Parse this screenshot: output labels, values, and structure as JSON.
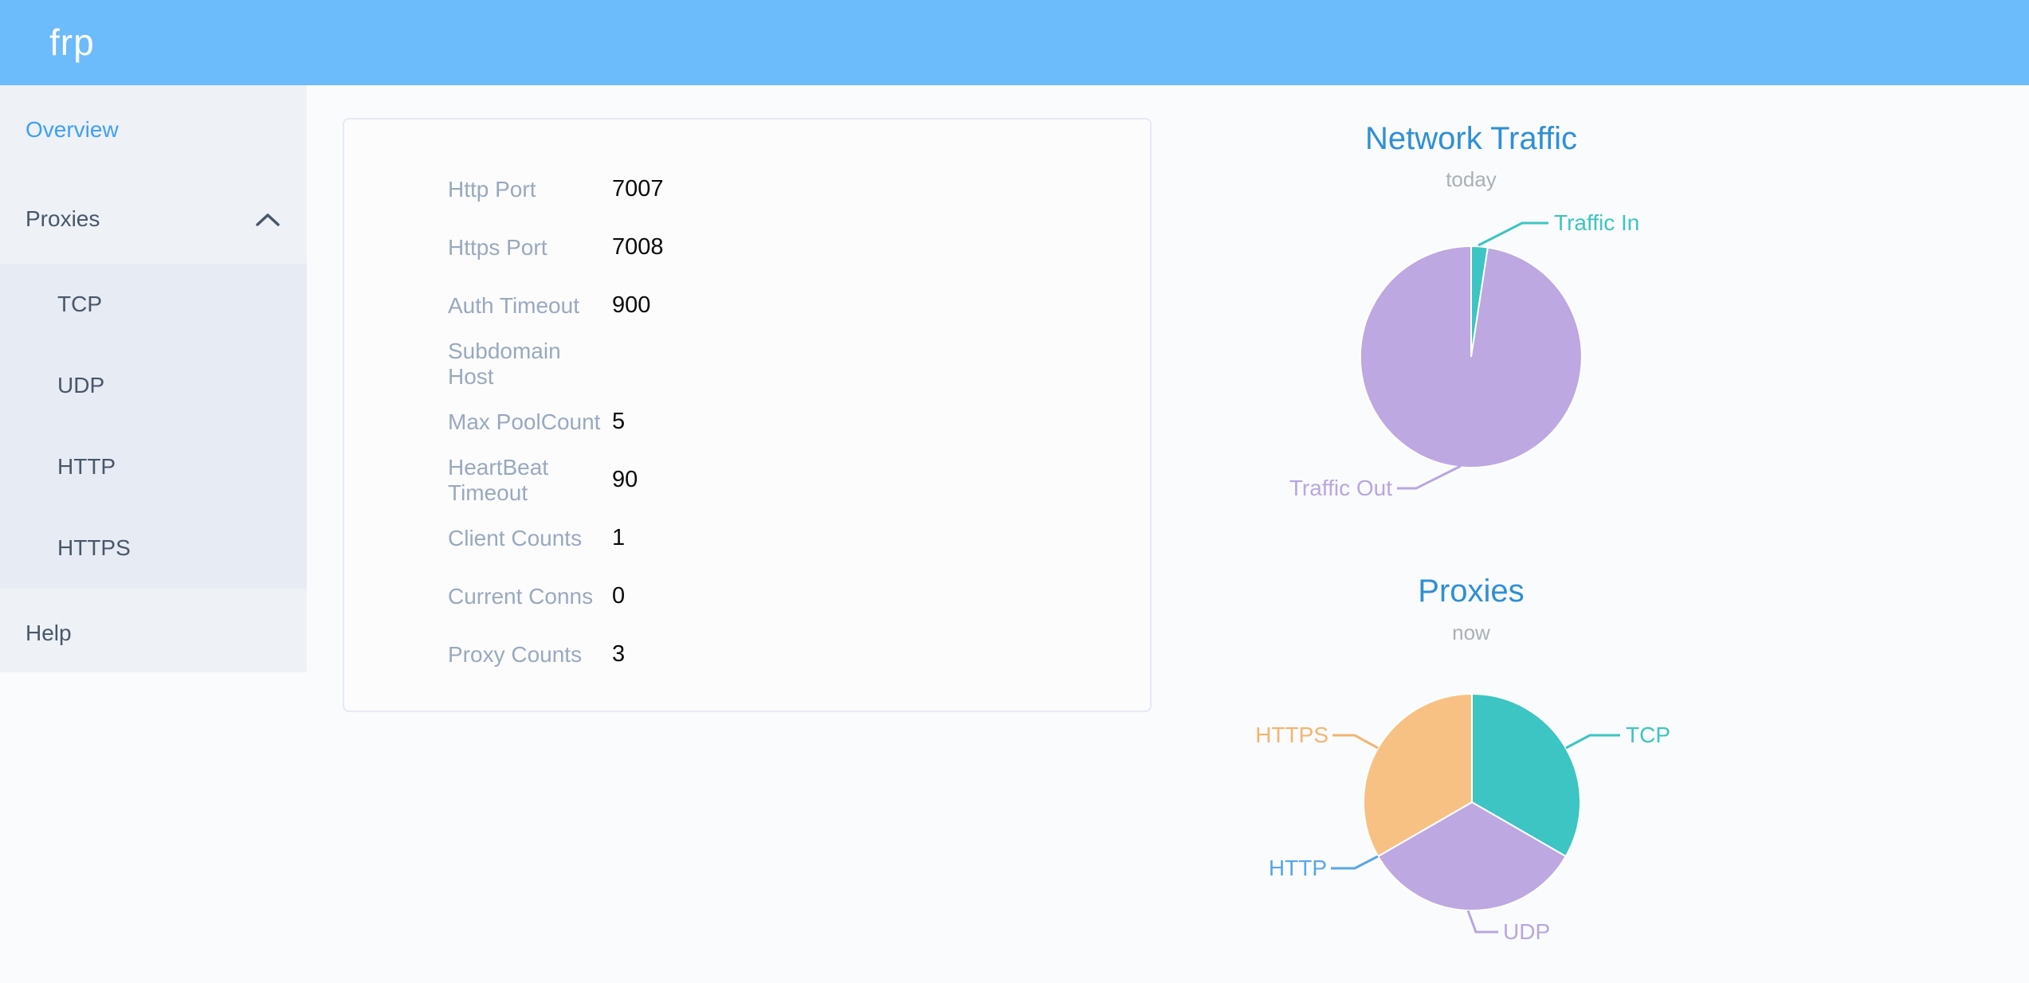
{
  "app": {
    "logo": "frp"
  },
  "sidebar": {
    "items": [
      {
        "label": "Overview",
        "active": true
      },
      {
        "label": "Proxies",
        "expanded": true,
        "children": [
          "TCP",
          "UDP",
          "HTTP",
          "HTTPS"
        ]
      },
      {
        "label": "Help"
      }
    ]
  },
  "overview_card": {
    "rows": [
      {
        "label": "Http Port",
        "value": "7007"
      },
      {
        "label": "Https Port",
        "value": "7008"
      },
      {
        "label": "Auth Timeout",
        "value": "900"
      },
      {
        "label": "Subdomain Host",
        "value": ""
      },
      {
        "label": "Max PoolCount",
        "value": "5"
      },
      {
        "label": "HeartBeat Timeout",
        "value": "90"
      },
      {
        "label": "Client Counts",
        "value": "1"
      },
      {
        "label": "Current Conns",
        "value": "0"
      },
      {
        "label": "Proxy Counts",
        "value": "3"
      }
    ]
  },
  "chart_data": [
    {
      "type": "pie",
      "title": "Network Traffic",
      "subtitle": "today",
      "legend_position": "callout-labels",
      "values_are_percent_estimates": true,
      "series": [
        {
          "name": "Traffic In",
          "value": 2.4,
          "color": "#3cc5c2"
        },
        {
          "name": "Traffic Out",
          "value": 97.6,
          "color": "#bda8e2"
        }
      ]
    },
    {
      "type": "pie",
      "title": "Proxies",
      "subtitle": "now",
      "legend_position": "callout-labels",
      "series": [
        {
          "name": "TCP",
          "value": 1,
          "color": "#3cc5c2"
        },
        {
          "name": "UDP",
          "value": 1,
          "color": "#bda8e2"
        },
        {
          "name": "HTTP",
          "value": 0,
          "color": "#58a6e8"
        },
        {
          "name": "HTTPS",
          "value": 1,
          "color": "#f8c184"
        }
      ]
    }
  ],
  "colors": {
    "header": "#6cbbfb",
    "accent_blue": "#3f9ff7",
    "title_blue": "#2f8fd6",
    "sidebar_bg": "#eef1f6",
    "submenu_bg": "#e7ebf3",
    "teal": "#3cc5c2",
    "purple": "#bda8e2",
    "orange": "#f8c184"
  }
}
